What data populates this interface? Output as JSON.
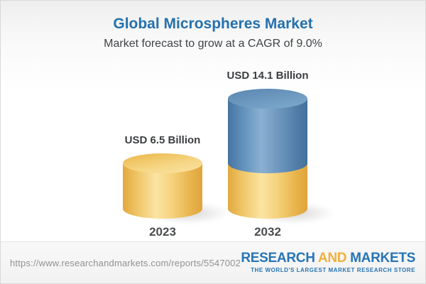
{
  "header": {
    "title": "Global Microspheres Market",
    "subtitle": "Market forecast to grow at a CAGR of 9.0%"
  },
  "chart_data": {
    "type": "bar",
    "style": "3d-cylinder, second bar stacked (base value in yellow + growth in blue)",
    "title": "Global Microspheres Market",
    "subtitle": "Market forecast to grow at a CAGR of 9.0%",
    "categories": [
      "2023",
      "2032"
    ],
    "values": [
      6.5,
      14.1
    ],
    "unit": "USD Billion",
    "bar_labels": [
      "USD 6.5 Billion",
      "USD 14.1 Billion"
    ],
    "cagr_pct": 9.0,
    "axes": "none",
    "grid": false,
    "legend": "none",
    "colors": {
      "base_yellow": "#f2c766",
      "growth_blue": "#5c8cb7",
      "title_blue": "#2471ad"
    }
  },
  "footer": {
    "url": "https://www.researchandmarkets.com/reports/5547002",
    "logo": {
      "research": "RESEARCH",
      "and": "AND",
      "markets": "MARKETS",
      "tagline": "THE WORLD'S LARGEST MARKET RESEARCH STORE"
    }
  }
}
